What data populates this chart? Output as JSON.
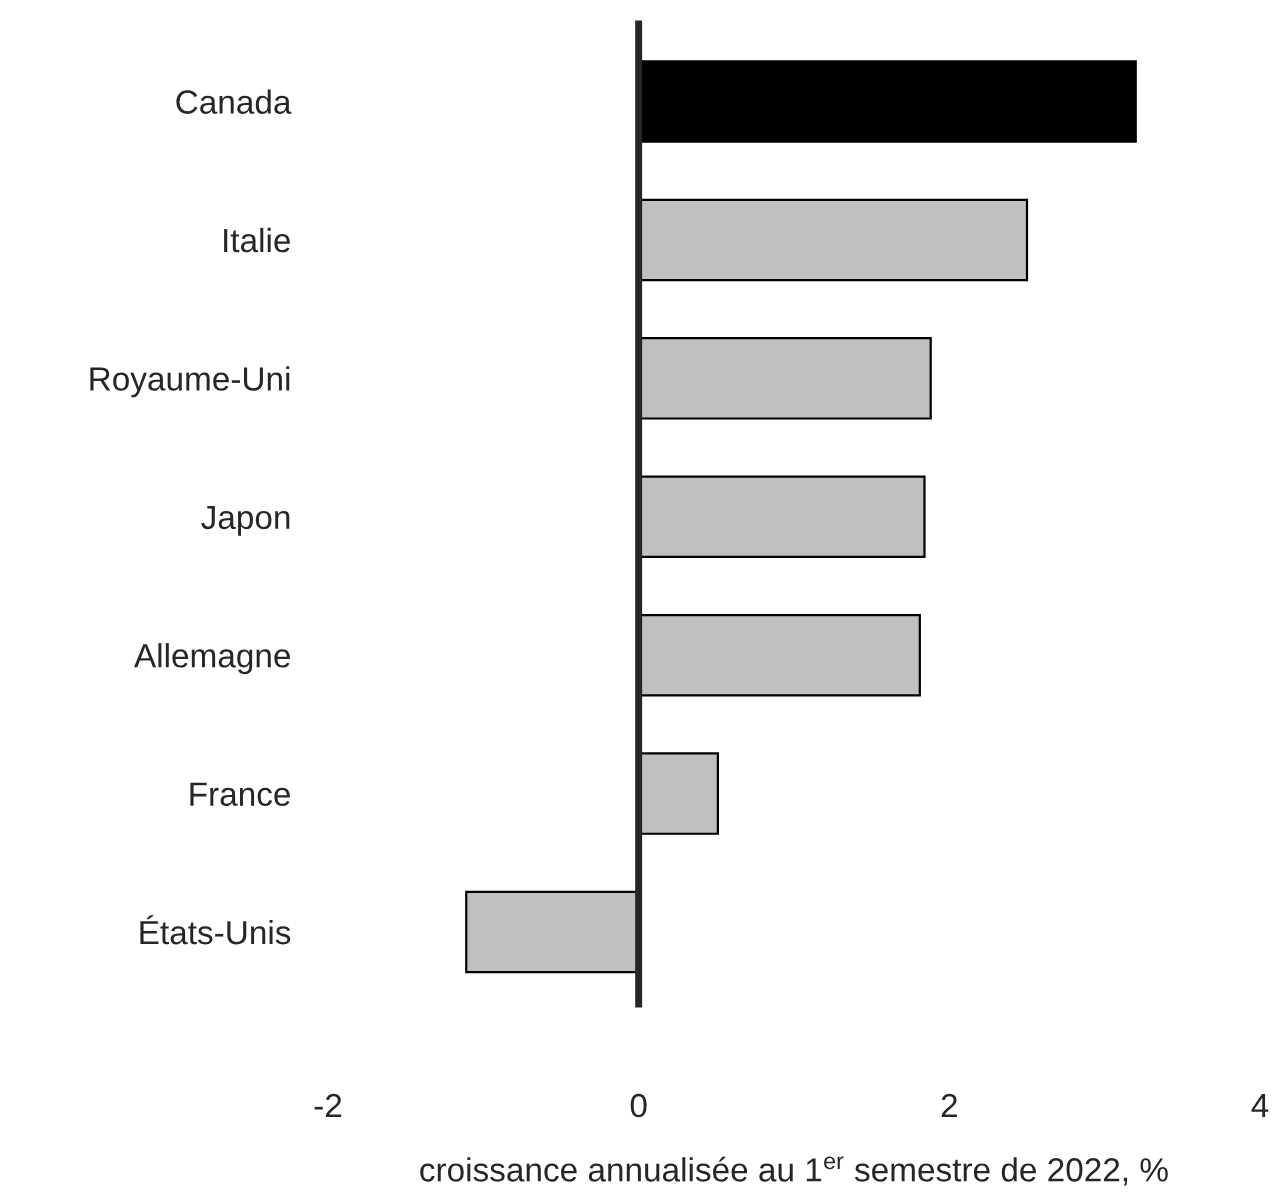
{
  "chart_data": {
    "type": "bar",
    "orientation": "horizontal",
    "xlabel": "croissance annualisée au 1$^{er}$ semestre de 2022, %",
    "categories": [
      "Canada",
      "Italie",
      "Royaume-Uni",
      "Japon",
      "Allemagne",
      "France",
      "États-Unis"
    ],
    "values": [
      3.2,
      2.5,
      1.88,
      1.84,
      1.81,
      0.51,
      -1.11
    ],
    "colors": [
      "#000000",
      "#c0c0c0",
      "#c0c0c0",
      "#c0c0c0",
      "#c0c0c0",
      "#c0c0c0",
      "#c0c0c0"
    ],
    "xlim": [
      -2,
      4
    ],
    "xticks": [
      -2,
      0,
      2,
      4
    ]
  }
}
